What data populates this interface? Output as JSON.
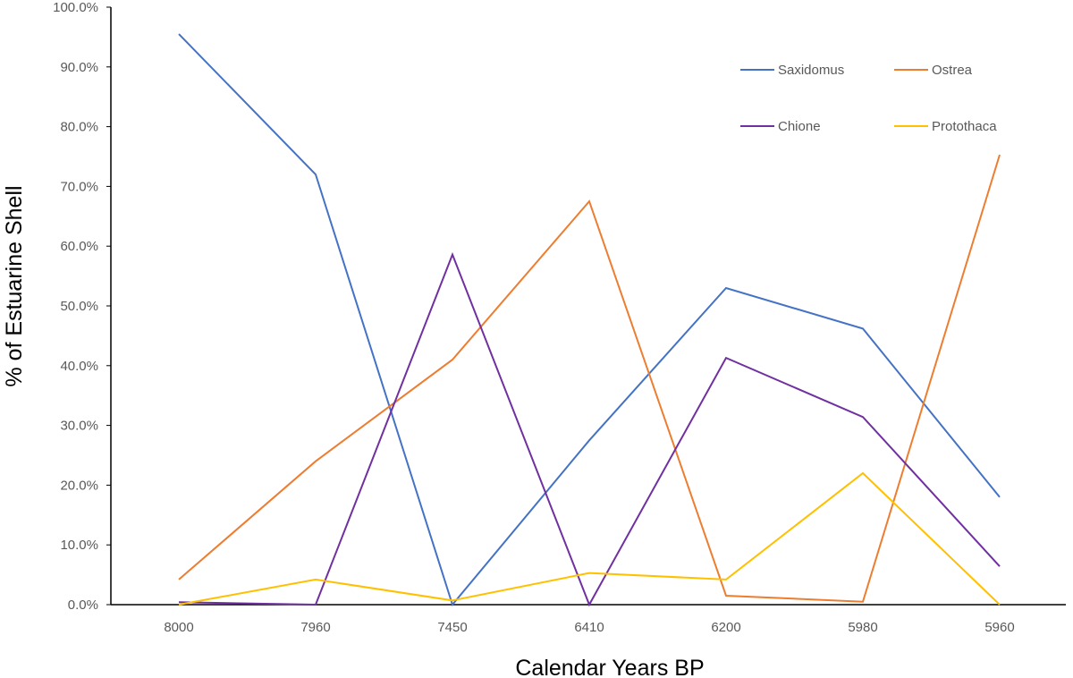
{
  "chart_data": {
    "type": "line",
    "title": "",
    "xlabel": "Calendar Years BP",
    "ylabel": "% of Estuarine Shell",
    "ylim": [
      0,
      100
    ],
    "categories": [
      "8000",
      "7960",
      "7450",
      "6410",
      "6200",
      "5980",
      "5960"
    ],
    "y_ticks": [
      "0.0%",
      "10.0%",
      "20.0%",
      "30.0%",
      "40.0%",
      "50.0%",
      "60.0%",
      "70.0%",
      "80.0%",
      "90.0%",
      "100.0%"
    ],
    "grid": false,
    "legend_position": "top-right",
    "series": [
      {
        "name": "Saxidomus",
        "color": "#4472C4",
        "values": [
          95.5,
          72.0,
          0.0,
          27.5,
          53.0,
          46.2,
          18.0
        ]
      },
      {
        "name": "Ostrea",
        "color": "#ED7D31",
        "values": [
          4.2,
          24.0,
          41.0,
          67.5,
          1.5,
          0.5,
          75.3
        ]
      },
      {
        "name": "Chione",
        "color": "#7030A0",
        "values": [
          0.4,
          0.0,
          58.6,
          0.0,
          41.3,
          31.4,
          6.4
        ]
      },
      {
        "name": "Protothaca",
        "color": "#FFC000",
        "values": [
          0.0,
          4.2,
          0.7,
          5.3,
          4.2,
          22.0,
          0.0
        ]
      }
    ]
  }
}
